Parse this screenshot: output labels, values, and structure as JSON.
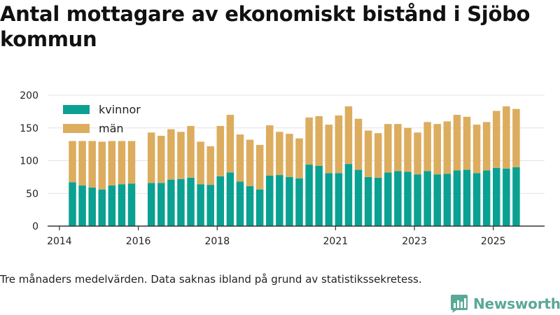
{
  "page": {
    "title": "Antal mottagare av ekonomiskt bistånd i Sjöbo kommun",
    "caption": "Tre månaders medelvärden. Data saknas ibland på grund av statistikssekretess.",
    "brand": "Newsworthy"
  },
  "chart_data": {
    "type": "bar",
    "stacked": true,
    "title": "Antal mottagare av ekonomiskt bistånd i Sjöbo kommun",
    "xlabel": "",
    "ylabel": "",
    "ylim": [
      0,
      200
    ],
    "xlim": [
      2013.7,
      2026.3
    ],
    "yticks": [
      0,
      50,
      100,
      150,
      200
    ],
    "xticks": [
      2014,
      2016,
      2018,
      2021,
      2023,
      2025
    ],
    "grid": true,
    "legend_position": "top-left",
    "colors": {
      "kvinnor": "#0aa192",
      "män": "#dcad5e",
      "axis": "#333333",
      "grid": "#e3e3e3"
    },
    "x": [
      2014.33,
      2014.58,
      2014.83,
      2015.08,
      2015.33,
      2015.58,
      2015.83,
      2016.33,
      2016.58,
      2016.83,
      2017.08,
      2017.33,
      2017.58,
      2017.83,
      2018.08,
      2018.33,
      2018.58,
      2018.83,
      2019.08,
      2019.33,
      2019.58,
      2019.83,
      2020.08,
      2020.33,
      2020.58,
      2020.83,
      2021.08,
      2021.33,
      2021.58,
      2021.83,
      2022.08,
      2022.33,
      2022.58,
      2022.83,
      2023.08,
      2023.33,
      2023.58,
      2023.83,
      2024.08,
      2024.33,
      2024.58,
      2024.83,
      2025.08,
      2025.33,
      2025.58
    ],
    "series": [
      {
        "name": "kvinnor",
        "values": [
          67,
          62,
          59,
          56,
          62,
          64,
          65,
          66,
          66,
          71,
          72,
          74,
          64,
          63,
          76,
          82,
          68,
          61,
          56,
          77,
          78,
          75,
          73,
          94,
          92,
          81,
          81,
          95,
          86,
          75,
          74,
          82,
          84,
          83,
          79,
          84,
          79,
          80,
          85,
          86,
          81,
          85,
          89,
          88,
          90
        ]
      },
      {
        "name": "män",
        "values": [
          63,
          68,
          71,
          73,
          68,
          66,
          65,
          77,
          72,
          77,
          72,
          79,
          65,
          59,
          77,
          88,
          72,
          71,
          68,
          77,
          66,
          66,
          61,
          72,
          76,
          74,
          88,
          88,
          78,
          71,
          68,
          74,
          72,
          67,
          64,
          75,
          77,
          80,
          85,
          81,
          74,
          74,
          87,
          95,
          89
        ]
      }
    ]
  }
}
